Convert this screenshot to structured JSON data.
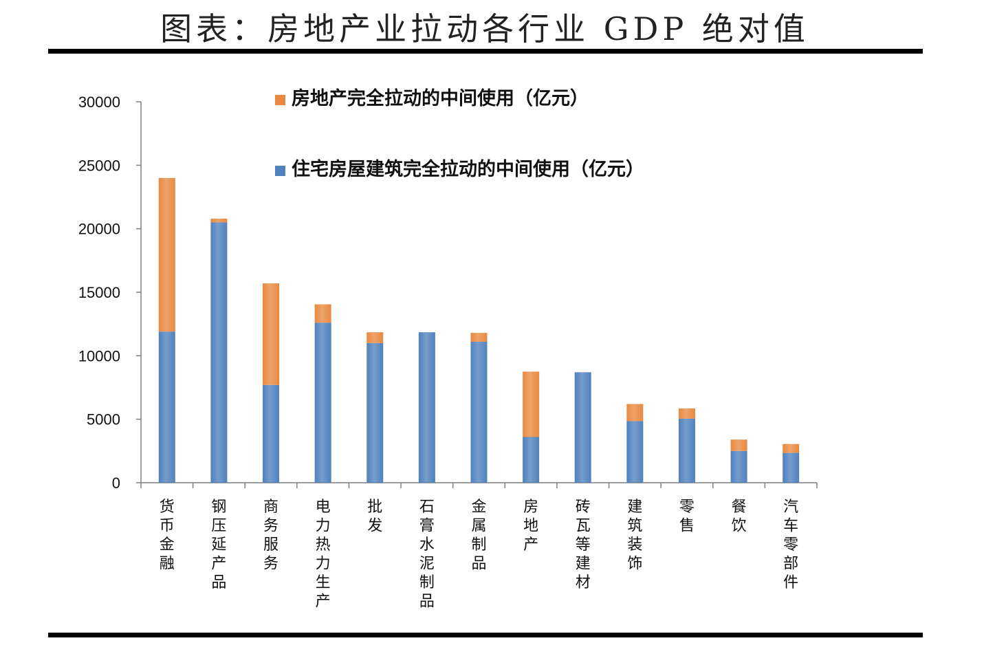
{
  "title": "图表：房地产业拉动各行业 GDP 绝对值",
  "colors": {
    "orange": "#E8893F",
    "blue": "#4F81BD",
    "axis": "#7f7f7f"
  },
  "chart_data": {
    "type": "bar",
    "stacked": true,
    "categories": [
      "货币金融",
      "钢压延产品",
      "商务服务",
      "电力热力生产",
      "批发",
      "石膏水泥制品",
      "金属制品",
      "房地产",
      "砖瓦等建材",
      "建筑装饰",
      "零售",
      "餐饮",
      "汽车零部件"
    ],
    "series": [
      {
        "name": "住宅房屋建筑完全拉动的中间使用（亿元）",
        "color": "#4F81BD",
        "values": [
          11900,
          20500,
          7700,
          12600,
          11000,
          11850,
          11100,
          3600,
          8700,
          4850,
          5050,
          2500,
          2350
        ]
      },
      {
        "name": "房地产完全拉动的中间使用（亿元）",
        "color": "#E8893F",
        "values": [
          12100,
          300,
          8000,
          1450,
          850,
          0,
          700,
          5150,
          0,
          1350,
          800,
          900,
          700
        ]
      }
    ],
    "yticks": [
      0,
      5000,
      10000,
      15000,
      20000,
      25000,
      30000
    ],
    "ylim": [
      0,
      30000
    ],
    "legend_position": "top-center",
    "legend_order": [
      1,
      0
    ]
  }
}
